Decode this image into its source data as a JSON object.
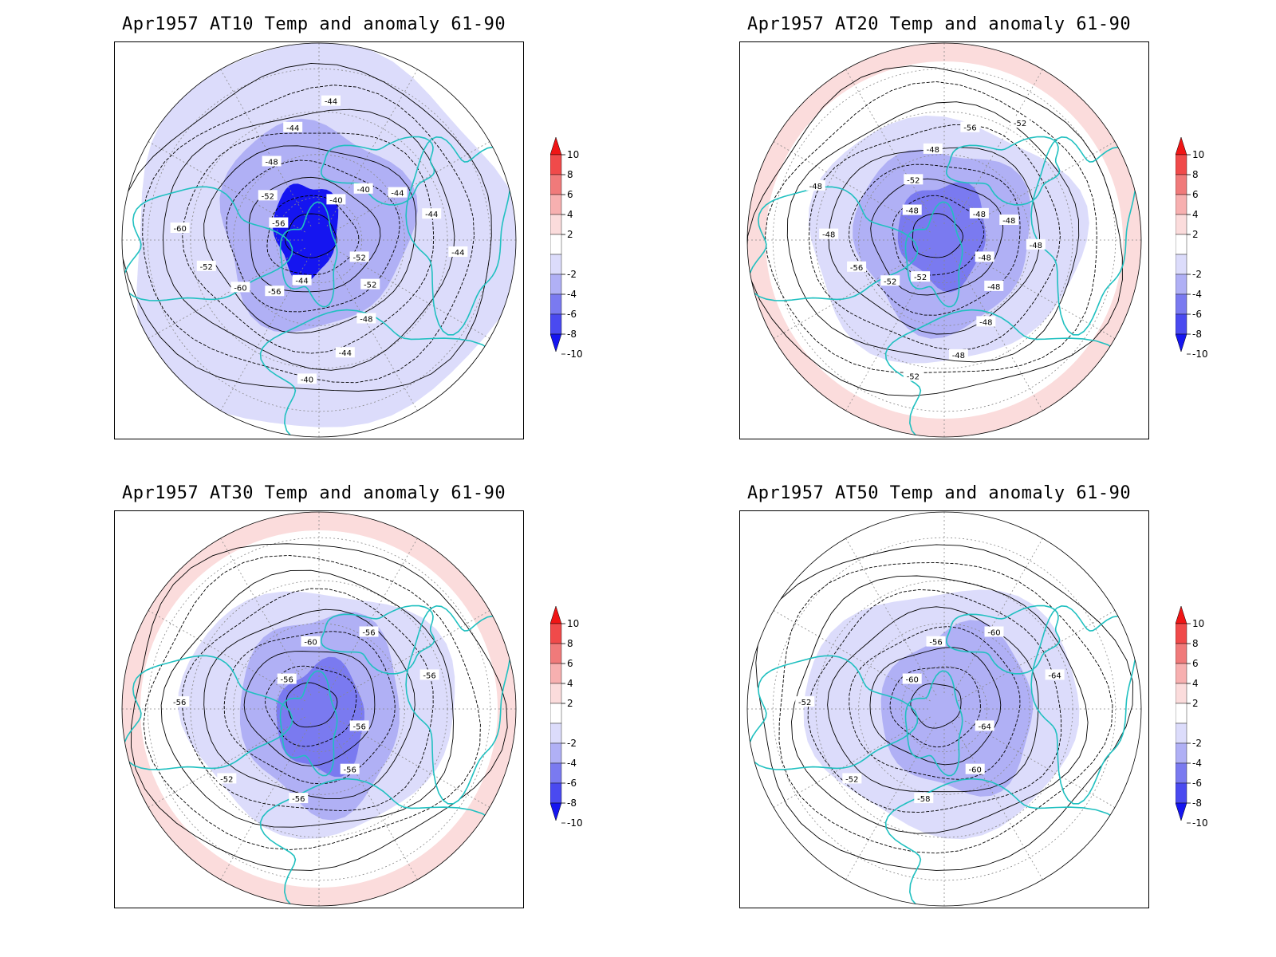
{
  "panels": [
    {
      "id": "at10",
      "title": "Apr1957 AT10 Temp and anomaly 61-90",
      "contour_labels": [
        "-52",
        "-52",
        "-48",
        "-44",
        "-40",
        "-44",
        "-56",
        "-60",
        "-52",
        "-60",
        "-56",
        "-52",
        "-48",
        "-44",
        "-44",
        "-40",
        "-40",
        "-44",
        "-44",
        "-44"
      ],
      "anomaly_fill": [
        {
          "level": "-2",
          "shape": "outer"
        },
        {
          "level": "-4",
          "shape": "ring"
        },
        {
          "level": "-6",
          "shape": "inner"
        },
        {
          "level": "-10",
          "shape": "core"
        }
      ]
    },
    {
      "id": "at20",
      "title": "Apr1957 AT20 Temp and anomaly 61-90",
      "contour_labels": [
        "-48",
        "-48",
        "-48",
        "-48",
        "-52",
        "-52",
        "-52",
        "-56",
        "-48",
        "-48",
        "-48",
        "-52",
        "-48",
        "-56",
        "-52",
        "-48",
        "-48",
        "-48"
      ],
      "anomaly_fill": [
        {
          "level": "2",
          "shape": "edge"
        },
        {
          "level": "-2",
          "shape": "outer"
        },
        {
          "level": "-4",
          "shape": "ring"
        },
        {
          "level": "-6",
          "shape": "core"
        }
      ]
    },
    {
      "id": "at30",
      "title": "Apr1957 AT30 Temp and anomaly 61-90",
      "contour_labels": [
        "-56",
        "-56",
        "-56",
        "-52",
        "-56",
        "-56",
        "-60",
        "-56",
        "-56"
      ],
      "anomaly_fill": [
        {
          "level": "2",
          "shape": "edge"
        },
        {
          "level": "-2",
          "shape": "outer"
        },
        {
          "level": "-4",
          "shape": "ring"
        },
        {
          "level": "-6",
          "shape": "core"
        }
      ]
    },
    {
      "id": "at50",
      "title": "Apr1957 AT50 Temp and anomaly 61-90",
      "contour_labels": [
        "-64",
        "-60",
        "-58",
        "-52",
        "-52",
        "-60",
        "-56",
        "-60",
        "-64"
      ],
      "anomaly_fill": [
        {
          "level": "-2",
          "shape": "outer"
        },
        {
          "level": "-4",
          "shape": "ring"
        }
      ]
    }
  ],
  "colorbar": {
    "labels": [
      "10",
      "8",
      "6",
      "4",
      "2",
      "-2",
      "-4",
      "-6",
      "-8",
      "-10"
    ],
    "colors": [
      "#f01515",
      "#f04a4a",
      "#f07a7a",
      "#f7b0b0",
      "#fbdcdc",
      "#ffffff",
      "#dcdcfb",
      "#b0b0f5",
      "#7a7af0",
      "#4a4af0",
      "#1515f0"
    ]
  },
  "colors": {
    "coastline": "#20c0c0",
    "contour": "#000000",
    "grid": "#888888"
  }
}
